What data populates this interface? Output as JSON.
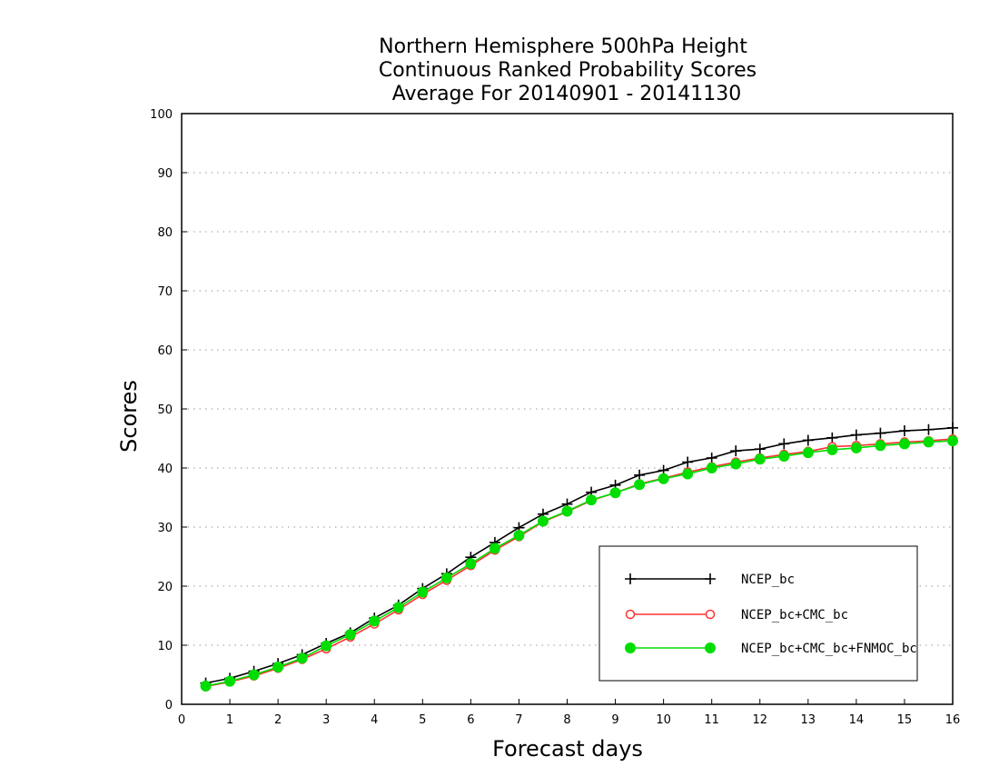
{
  "chart_data": {
    "type": "line",
    "title_lines": [
      "Northern Hemisphere 500hPa Height",
      "Continuous Ranked Probability Scores",
      "Average For 20140901 - 20141130"
    ],
    "xlabel": "Forecast days",
    "ylabel": "Scores",
    "xlim": [
      0,
      16
    ],
    "ylim": [
      0,
      100
    ],
    "x_ticks": [
      0,
      1,
      2,
      3,
      4,
      5,
      6,
      7,
      8,
      9,
      10,
      11,
      12,
      13,
      14,
      15,
      16
    ],
    "y_ticks": [
      0,
      10,
      20,
      30,
      40,
      50,
      60,
      70,
      80,
      90,
      100
    ],
    "grid": "horizontal dotted",
    "legend_position": "lower-right",
    "x": [
      0.5,
      1,
      1.5,
      2,
      2.5,
      3,
      3.5,
      4,
      4.5,
      5,
      5.5,
      6,
      6.5,
      7,
      7.5,
      8,
      8.5,
      9,
      9.5,
      10,
      10.5,
      11,
      11.5,
      12,
      12.5,
      13,
      13.5,
      14,
      14.5,
      15,
      15.5,
      16
    ],
    "series": [
      {
        "name": "NCEP_bc",
        "color": "#000000",
        "marker": "plus",
        "values": [
          3.6,
          4.4,
          5.6,
          6.9,
          8.4,
          10.3,
          12.1,
          14.6,
          16.8,
          19.6,
          22.1,
          24.9,
          27.4,
          29.9,
          32.2,
          33.9,
          35.9,
          37.1,
          38.8,
          39.6,
          41.0,
          41.7,
          42.9,
          43.2,
          44.1,
          44.7,
          45.1,
          45.6,
          45.9,
          46.3,
          46.5,
          46.8
        ]
      },
      {
        "name": "NCEP_bc+CMC_bc",
        "color": "#ff3333",
        "marker": "open-circle",
        "values": [
          3.0,
          3.8,
          4.8,
          6.1,
          7.6,
          9.4,
          11.4,
          13.6,
          16.0,
          18.6,
          21.0,
          23.5,
          26.1,
          28.4,
          30.9,
          32.6,
          34.5,
          35.8,
          37.3,
          38.3,
          39.3,
          40.2,
          41.0,
          41.7,
          42.3,
          42.8,
          43.6,
          43.8,
          44.1,
          44.4,
          44.6,
          44.9
        ]
      },
      {
        "name": "NCEP_bc+CMC_bc+FNMOC_bc",
        "color": "#00dd00",
        "marker": "filled-circle",
        "values": [
          3.1,
          3.9,
          5.0,
          6.3,
          7.8,
          9.9,
          11.8,
          14.1,
          16.4,
          19.0,
          21.4,
          23.8,
          26.4,
          28.6,
          31.0,
          32.7,
          34.6,
          35.8,
          37.2,
          38.2,
          39.0,
          40.0,
          40.7,
          41.5,
          42.0,
          42.6,
          43.1,
          43.4,
          43.8,
          44.1,
          44.4,
          44.6
        ]
      }
    ]
  }
}
